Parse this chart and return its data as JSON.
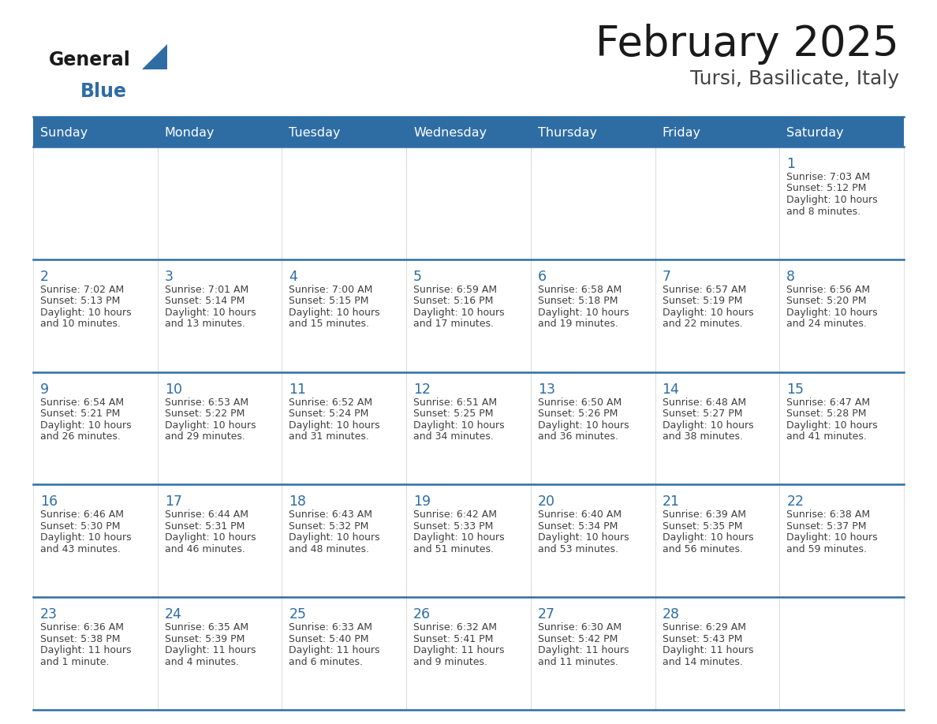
{
  "title": "February 2025",
  "subtitle": "Tursi, Basilicate, Italy",
  "days_of_week": [
    "Sunday",
    "Monday",
    "Tuesday",
    "Wednesday",
    "Thursday",
    "Friday",
    "Saturday"
  ],
  "header_bg": "#2E6DA4",
  "header_text": "#FFFFFF",
  "day_number_color": "#2E6DA4",
  "text_color": "#404040",
  "line_color": "#2E6DA4",
  "calendar_data": [
    [
      null,
      null,
      null,
      null,
      null,
      null,
      {
        "day": 1,
        "sunrise": "7:03 AM",
        "sunset": "5:12 PM",
        "daylight": "10 hours and 8 minutes."
      }
    ],
    [
      {
        "day": 2,
        "sunrise": "7:02 AM",
        "sunset": "5:13 PM",
        "daylight": "10 hours and 10 minutes."
      },
      {
        "day": 3,
        "sunrise": "7:01 AM",
        "sunset": "5:14 PM",
        "daylight": "10 hours and 13 minutes."
      },
      {
        "day": 4,
        "sunrise": "7:00 AM",
        "sunset": "5:15 PM",
        "daylight": "10 hours and 15 minutes."
      },
      {
        "day": 5,
        "sunrise": "6:59 AM",
        "sunset": "5:16 PM",
        "daylight": "10 hours and 17 minutes."
      },
      {
        "day": 6,
        "sunrise": "6:58 AM",
        "sunset": "5:18 PM",
        "daylight": "10 hours and 19 minutes."
      },
      {
        "day": 7,
        "sunrise": "6:57 AM",
        "sunset": "5:19 PM",
        "daylight": "10 hours and 22 minutes."
      },
      {
        "day": 8,
        "sunrise": "6:56 AM",
        "sunset": "5:20 PM",
        "daylight": "10 hours and 24 minutes."
      }
    ],
    [
      {
        "day": 9,
        "sunrise": "6:54 AM",
        "sunset": "5:21 PM",
        "daylight": "10 hours and 26 minutes."
      },
      {
        "day": 10,
        "sunrise": "6:53 AM",
        "sunset": "5:22 PM",
        "daylight": "10 hours and 29 minutes."
      },
      {
        "day": 11,
        "sunrise": "6:52 AM",
        "sunset": "5:24 PM",
        "daylight": "10 hours and 31 minutes."
      },
      {
        "day": 12,
        "sunrise": "6:51 AM",
        "sunset": "5:25 PM",
        "daylight": "10 hours and 34 minutes."
      },
      {
        "day": 13,
        "sunrise": "6:50 AM",
        "sunset": "5:26 PM",
        "daylight": "10 hours and 36 minutes."
      },
      {
        "day": 14,
        "sunrise": "6:48 AM",
        "sunset": "5:27 PM",
        "daylight": "10 hours and 38 minutes."
      },
      {
        "day": 15,
        "sunrise": "6:47 AM",
        "sunset": "5:28 PM",
        "daylight": "10 hours and 41 minutes."
      }
    ],
    [
      {
        "day": 16,
        "sunrise": "6:46 AM",
        "sunset": "5:30 PM",
        "daylight": "10 hours and 43 minutes."
      },
      {
        "day": 17,
        "sunrise": "6:44 AM",
        "sunset": "5:31 PM",
        "daylight": "10 hours and 46 minutes."
      },
      {
        "day": 18,
        "sunrise": "6:43 AM",
        "sunset": "5:32 PM",
        "daylight": "10 hours and 48 minutes."
      },
      {
        "day": 19,
        "sunrise": "6:42 AM",
        "sunset": "5:33 PM",
        "daylight": "10 hours and 51 minutes."
      },
      {
        "day": 20,
        "sunrise": "6:40 AM",
        "sunset": "5:34 PM",
        "daylight": "10 hours and 53 minutes."
      },
      {
        "day": 21,
        "sunrise": "6:39 AM",
        "sunset": "5:35 PM",
        "daylight": "10 hours and 56 minutes."
      },
      {
        "day": 22,
        "sunrise": "6:38 AM",
        "sunset": "5:37 PM",
        "daylight": "10 hours and 59 minutes."
      }
    ],
    [
      {
        "day": 23,
        "sunrise": "6:36 AM",
        "sunset": "5:38 PM",
        "daylight": "11 hours and 1 minute."
      },
      {
        "day": 24,
        "sunrise": "6:35 AM",
        "sunset": "5:39 PM",
        "daylight": "11 hours and 4 minutes."
      },
      {
        "day": 25,
        "sunrise": "6:33 AM",
        "sunset": "5:40 PM",
        "daylight": "11 hours and 6 minutes."
      },
      {
        "day": 26,
        "sunrise": "6:32 AM",
        "sunset": "5:41 PM",
        "daylight": "11 hours and 9 minutes."
      },
      {
        "day": 27,
        "sunrise": "6:30 AM",
        "sunset": "5:42 PM",
        "daylight": "11 hours and 11 minutes."
      },
      {
        "day": 28,
        "sunrise": "6:29 AM",
        "sunset": "5:43 PM",
        "daylight": "11 hours and 14 minutes."
      },
      null
    ]
  ]
}
